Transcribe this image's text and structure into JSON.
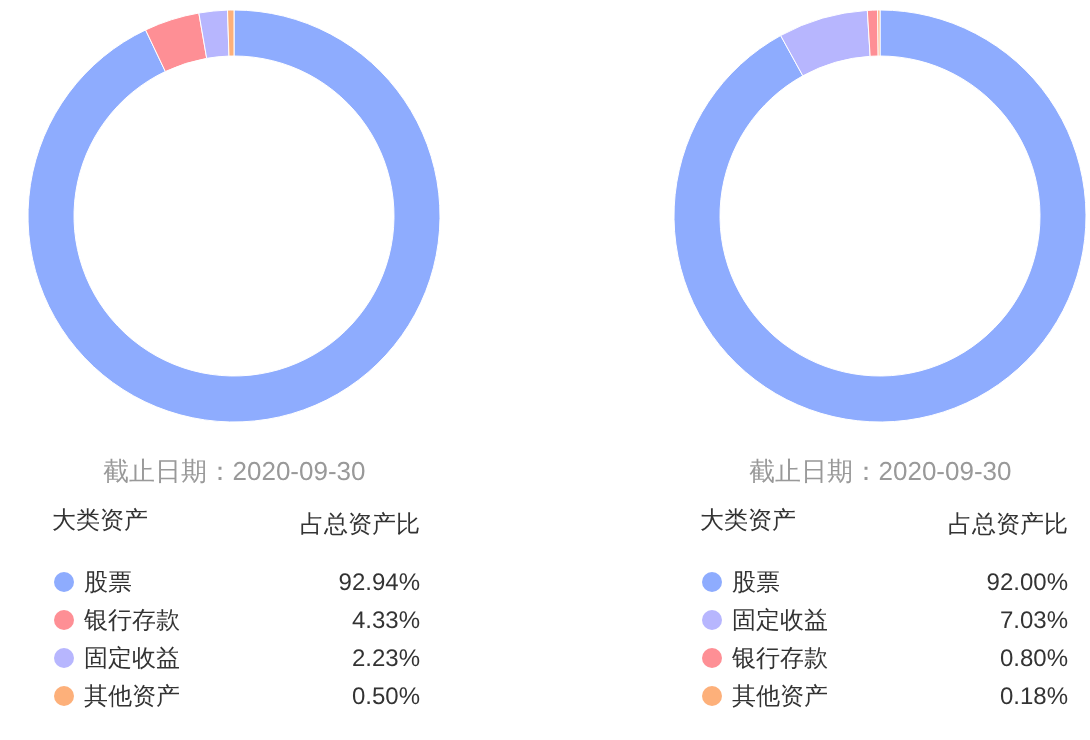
{
  "chart_data": [
    {
      "type": "donut",
      "subtitle": "截止日期：2020-09-30",
      "legend_title": "大类资产",
      "annotations": [
        "占总资产比"
      ],
      "legend": "bottom",
      "categories": [
        "股票",
        "银行存款",
        "固定收益",
        "其他资产"
      ],
      "values": [
        92.94,
        4.33,
        2.23,
        0.5
      ],
      "value_labels": [
        "92.94%",
        "4.33%",
        "2.23%",
        "0.50%"
      ],
      "colors": [
        "#8eacfe",
        "#fe8f95",
        "#b7b6fe",
        "#fdb07a"
      ]
    },
    {
      "type": "donut",
      "subtitle": "截止日期：2020-09-30",
      "legend_title": "大类资产",
      "annotations": [
        "占总资产比"
      ],
      "legend": "bottom",
      "categories": [
        "股票",
        "固定收益",
        "银行存款",
        "其他资产"
      ],
      "values": [
        92.0,
        7.03,
        0.8,
        0.18
      ],
      "value_labels": [
        "92.00%",
        "7.03%",
        "0.80%",
        "0.18%"
      ],
      "colors": [
        "#8eacfe",
        "#b7b6fe",
        "#fe8f95",
        "#fdb07a"
      ]
    }
  ]
}
